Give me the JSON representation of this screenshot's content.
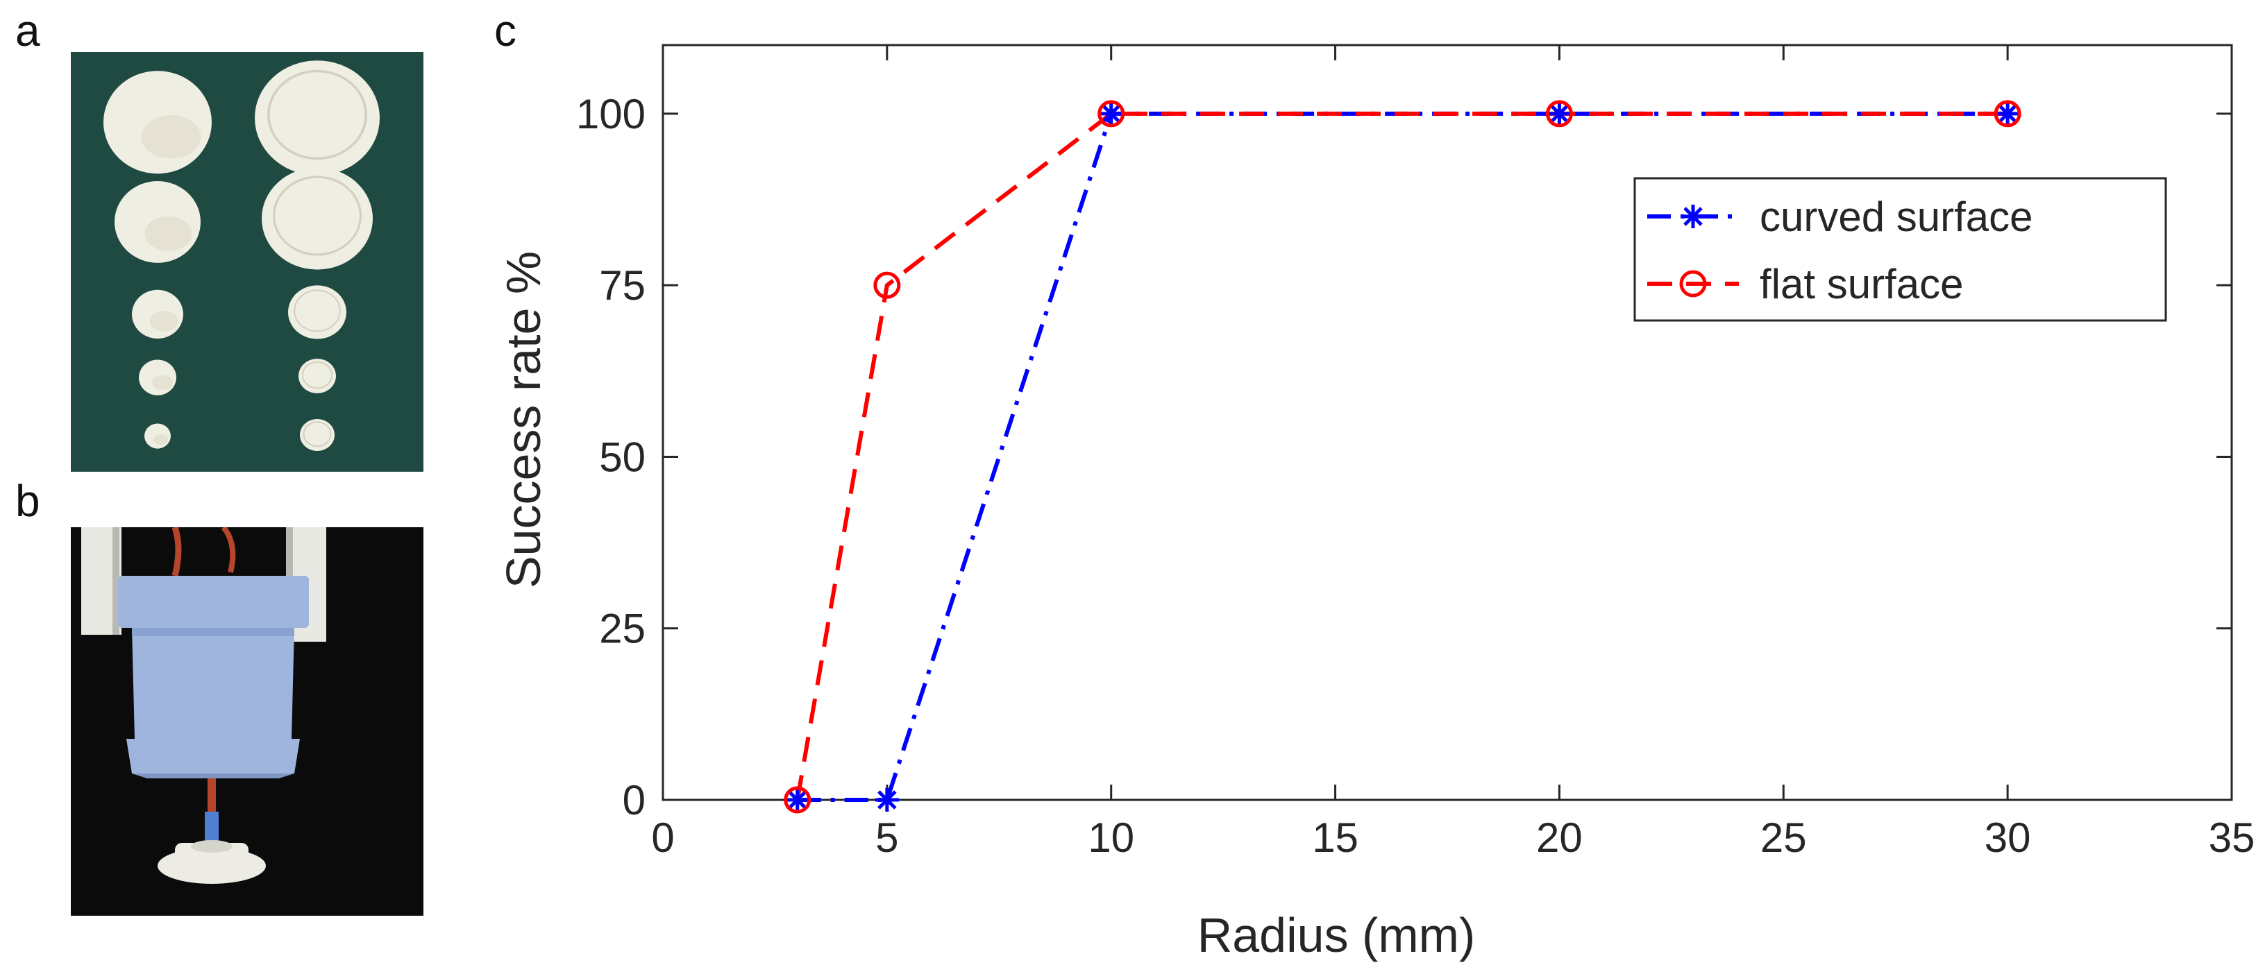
{
  "panels": {
    "a": {
      "letter": "a"
    },
    "b": {
      "letter": "b"
    },
    "c": {
      "letter": "c"
    }
  },
  "photo_a": {
    "background_color": "#1f4a42",
    "object_color": "#efeee3",
    "columns": [
      "dome",
      "flat-disc"
    ],
    "rows": 5
  },
  "photo_b": {
    "background_color": "#0b0b0b",
    "gripper_color": "#9fb5de",
    "finger_color": "#e9e9e4",
    "tube_color": "#b5452b",
    "object_color": "#ecebe4"
  },
  "chart_data": {
    "type": "line",
    "title": "",
    "xlabel": "Radius (mm)",
    "ylabel": "Success rate %",
    "xlim": [
      0,
      35
    ],
    "ylim": [
      0,
      110
    ],
    "xticks": [
      0,
      5,
      10,
      15,
      20,
      25,
      30,
      35
    ],
    "yticks": [
      0,
      25,
      50,
      75,
      100
    ],
    "grid": false,
    "legend_position": "top-right",
    "series": [
      {
        "name": "curved surface",
        "color": "#0000ff",
        "marker": "asterisk",
        "line_style": "dash-dot",
        "x": [
          3,
          5,
          10,
          20,
          30
        ],
        "y": [
          0,
          0,
          100,
          100,
          100
        ]
      },
      {
        "name": "flat surface",
        "color": "#ff0000",
        "marker": "circle",
        "line_style": "dashed",
        "x": [
          3,
          5,
          10,
          20,
          30
        ],
        "y": [
          0,
          75,
          100,
          100,
          100
        ]
      }
    ]
  }
}
